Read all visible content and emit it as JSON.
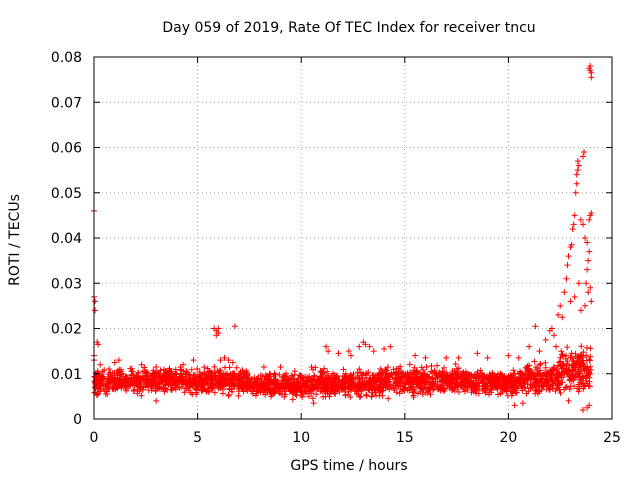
{
  "chart_data": {
    "type": "scatter",
    "title": "Day 059 of 2019, Rate Of TEC Index for receiver tncu",
    "xlabel": "GPS time / hours",
    "ylabel": "ROTI / TECUs",
    "xlim": [
      0,
      25
    ],
    "ylim": [
      0,
      0.08
    ],
    "xticks": [
      0,
      5,
      10,
      15,
      20,
      25
    ],
    "xtick_labels": [
      "0",
      "5",
      "10",
      "15",
      "20",
      "25"
    ],
    "yticks": [
      0,
      0.01,
      0.02,
      0.03,
      0.04,
      0.05,
      0.06,
      0.07,
      0.08
    ],
    "ytick_labels": [
      "0",
      "0.01",
      "0.02",
      "0.03",
      "0.04",
      "0.05",
      "0.06",
      "0.07",
      "0.08"
    ],
    "grid": true,
    "marker": "+",
    "color": "#ff0000",
    "background_band": {
      "note": "dense cloud of samples",
      "segments": [
        {
          "x": [
            0.0,
            1.0
          ],
          "y_center": 0.008,
          "spread": 0.004
        },
        {
          "x": [
            1.0,
            5.0
          ],
          "y_center": 0.0085,
          "spread": 0.0035
        },
        {
          "x": [
            5.0,
            7.5
          ],
          "y_center": 0.0085,
          "spread": 0.004
        },
        {
          "x": [
            7.5,
            10.5
          ],
          "y_center": 0.0075,
          "spread": 0.0035
        },
        {
          "x": [
            10.5,
            14.0
          ],
          "y_center": 0.008,
          "spread": 0.004
        },
        {
          "x": [
            14.0,
            18.0
          ],
          "y_center": 0.0085,
          "spread": 0.004
        },
        {
          "x": [
            18.0,
            20.5
          ],
          "y_center": 0.008,
          "spread": 0.0035
        },
        {
          "x": [
            20.5,
            22.5
          ],
          "y_center": 0.009,
          "spread": 0.0045
        },
        {
          "x": [
            22.5,
            24.0
          ],
          "y_center": 0.011,
          "spread": 0.007
        }
      ]
    },
    "series": [
      {
        "name": "ROTI",
        "points": [
          [
            0.0,
            0.046
          ],
          [
            0.0,
            0.027
          ],
          [
            0.05,
            0.026
          ],
          [
            0.05,
            0.024
          ],
          [
            0.0,
            0.014
          ],
          [
            0.0,
            0.013
          ],
          [
            0.15,
            0.017
          ],
          [
            0.2,
            0.0165
          ],
          [
            0.3,
            0.012
          ],
          [
            1.0,
            0.0125
          ],
          [
            1.2,
            0.013
          ],
          [
            2.3,
            0.012
          ],
          [
            3.0,
            0.0115
          ],
          [
            4.3,
            0.012
          ],
          [
            4.8,
            0.013
          ],
          [
            5.8,
            0.02
          ],
          [
            5.9,
            0.0195
          ],
          [
            6.0,
            0.02
          ],
          [
            6.0,
            0.019
          ],
          [
            5.9,
            0.0185
          ],
          [
            6.1,
            0.013
          ],
          [
            6.3,
            0.0135
          ],
          [
            6.5,
            0.013
          ],
          [
            6.8,
            0.0205
          ],
          [
            6.7,
            0.0125
          ],
          [
            8.2,
            0.0115
          ],
          [
            9.0,
            0.0115
          ],
          [
            10.5,
            0.0115
          ],
          [
            11.2,
            0.016
          ],
          [
            11.3,
            0.015
          ],
          [
            11.8,
            0.0145
          ],
          [
            12.3,
            0.015
          ],
          [
            12.4,
            0.014
          ],
          [
            12.8,
            0.016
          ],
          [
            13.0,
            0.017
          ],
          [
            13.1,
            0.0165
          ],
          [
            13.3,
            0.016
          ],
          [
            13.5,
            0.015
          ],
          [
            14.0,
            0.0155
          ],
          [
            14.3,
            0.016
          ],
          [
            15.5,
            0.014
          ],
          [
            16.0,
            0.0135
          ],
          [
            17.0,
            0.0135
          ],
          [
            17.6,
            0.0135
          ],
          [
            18.5,
            0.0145
          ],
          [
            19.0,
            0.0135
          ],
          [
            20.0,
            0.014
          ],
          [
            20.5,
            0.0135
          ],
          [
            21.0,
            0.016
          ],
          [
            21.3,
            0.0205
          ],
          [
            21.5,
            0.015
          ],
          [
            21.8,
            0.0175
          ],
          [
            22.0,
            0.0195
          ],
          [
            22.1,
            0.02
          ],
          [
            22.2,
            0.0185
          ],
          [
            22.3,
            0.016
          ],
          [
            22.4,
            0.023
          ],
          [
            22.5,
            0.025
          ],
          [
            22.6,
            0.0225
          ],
          [
            22.7,
            0.028
          ],
          [
            22.8,
            0.031
          ],
          [
            22.85,
            0.034
          ],
          [
            22.9,
            0.036
          ],
          [
            23.0,
            0.038
          ],
          [
            23.05,
            0.0385
          ],
          [
            23.1,
            0.042
          ],
          [
            23.15,
            0.043
          ],
          [
            23.2,
            0.045
          ],
          [
            23.25,
            0.05
          ],
          [
            23.3,
            0.052
          ],
          [
            23.35,
            0.055
          ],
          [
            23.3,
            0.054
          ],
          [
            23.4,
            0.056
          ],
          [
            23.35,
            0.057
          ],
          [
            23.6,
            0.058
          ],
          [
            23.65,
            0.059
          ],
          [
            23.5,
            0.044
          ],
          [
            23.6,
            0.043
          ],
          [
            23.7,
            0.04
          ],
          [
            23.8,
            0.039
          ],
          [
            23.85,
            0.035
          ],
          [
            23.9,
            0.037
          ],
          [
            23.95,
            0.045
          ],
          [
            24.0,
            0.0455
          ],
          [
            23.9,
            0.044
          ],
          [
            23.8,
            0.033
          ],
          [
            23.75,
            0.03
          ],
          [
            23.85,
            0.028
          ],
          [
            23.95,
            0.029
          ],
          [
            24.0,
            0.026
          ],
          [
            23.7,
            0.025
          ],
          [
            23.5,
            0.024
          ],
          [
            23.4,
            0.03
          ],
          [
            23.2,
            0.027
          ],
          [
            23.0,
            0.026
          ],
          [
            23.95,
            0.078
          ],
          [
            23.95,
            0.077
          ],
          [
            24.0,
            0.0765
          ],
          [
            23.9,
            0.0775
          ],
          [
            24.0,
            0.0755
          ],
          [
            23.6,
            0.002
          ],
          [
            23.8,
            0.0025
          ],
          [
            23.9,
            0.003
          ],
          [
            22.9,
            0.004
          ],
          [
            20.3,
            0.003
          ],
          [
            20.7,
            0.0035
          ],
          [
            10.6,
            0.0035
          ],
          [
            3.0,
            0.004
          ],
          [
            14.2,
            0.0045
          ]
        ]
      }
    ]
  }
}
